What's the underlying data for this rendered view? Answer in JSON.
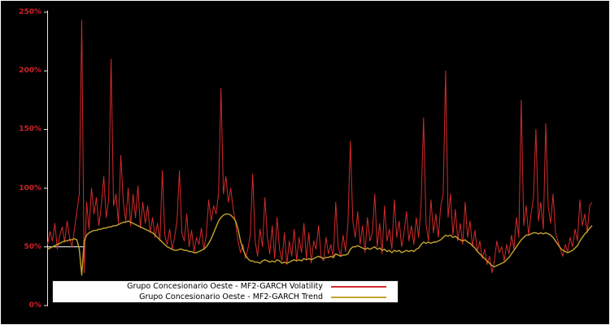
{
  "figure": {
    "background": "#000000",
    "frame_color": "#ffffff"
  },
  "chart_data": {
    "type": "line",
    "title": "",
    "xlabel": "",
    "ylabel": "",
    "unit": "%",
    "ylim": [
      0,
      250
    ],
    "ytick_labels": [
      "250%",
      "200%",
      "150%",
      "100%",
      "50%",
      "0%"
    ],
    "axis_label_color": "#d22128",
    "axis_line_color": "#e8e8e8",
    "grid": "off",
    "legend_position": "bottom-left",
    "legend_background": "#ffffff",
    "series": [
      {
        "name": "Grupo Concesionario Oeste - MF2-GARCH Volatility",
        "color": "#d42a2a",
        "values": [
          52,
          63,
          55,
          70,
          48,
          60,
          67,
          54,
          72,
          58,
          50,
          65,
          80,
          95,
          243,
          28,
          88,
          65,
          100,
          78,
          92,
          68,
          85,
          110,
          75,
          90,
          210,
          85,
          95,
          70,
          128,
          88,
          72,
          100,
          68,
          95,
          75,
          102,
          66,
          88,
          70,
          85,
          62,
          75,
          58,
          70,
          55,
          115,
          60,
          52,
          65,
          48,
          58,
          72,
          115,
          62,
          55,
          78,
          50,
          64,
          46,
          58,
          52,
          66,
          48,
          60,
          90,
          72,
          85,
          78,
          95,
          185,
          95,
          110,
          88,
          100,
          82,
          70,
          55,
          45,
          52,
          40,
          48,
          60,
          112,
          55,
          42,
          65,
          50,
          92,
          58,
          44,
          68,
          40,
          75,
          48,
          38,
          62,
          35,
          55,
          42,
          65,
          38,
          58,
          45,
          70,
          40,
          62,
          36,
          55,
          48,
          68,
          42,
          38,
          58,
          44,
          52,
          40,
          88,
          50,
          42,
          60,
          46,
          70,
          140,
          72,
          58,
          80,
          52,
          68,
          45,
          75,
          55,
          62,
          95,
          50,
          70,
          44,
          85,
          55,
          65,
          48,
          90,
          58,
          72,
          50,
          62,
          80,
          55,
          68,
          52,
          75,
          58,
          88,
          160,
          70,
          55,
          90,
          62,
          78,
          58,
          85,
          95,
          200,
          75,
          95,
          60,
          82,
          55,
          70,
          52,
          88,
          58,
          72,
          50,
          64,
          46,
          55,
          40,
          48,
          35,
          42,
          28,
          38,
          55,
          45,
          50,
          38,
          52,
          44,
          60,
          48,
          75,
          58,
          175,
          68,
          85,
          60,
          78,
          92,
          150,
          72,
          88,
          65,
          155,
          85,
          70,
          95,
          62,
          55,
          48,
          42,
          52,
          46,
          58,
          50,
          65,
          55,
          90,
          68,
          78,
          62,
          85,
          88
        ]
      },
      {
        "name": "Grupo Concesionario Oeste - MF2-GARCH Trend",
        "color": "#c4a52b",
        "values": [
          48,
          49,
          50,
          51,
          52,
          53,
          54,
          55,
          55,
          56,
          56,
          57,
          56,
          48,
          26,
          55,
          60,
          62,
          63,
          64,
          64,
          65,
          65,
          66,
          66,
          67,
          67,
          68,
          68,
          69,
          70,
          71,
          71,
          72,
          71,
          70,
          69,
          68,
          67,
          66,
          65,
          64,
          63,
          62,
          60,
          58,
          56,
          54,
          52,
          50,
          49,
          48,
          47,
          47,
          48,
          48,
          47,
          47,
          46,
          46,
          45,
          45,
          46,
          47,
          48,
          50,
          53,
          57,
          62,
          67,
          72,
          75,
          77,
          78,
          78,
          77,
          75,
          72,
          65,
          55,
          48,
          43,
          40,
          38,
          38,
          37,
          37,
          36,
          38,
          39,
          38,
          37,
          38,
          37,
          39,
          38,
          36,
          37,
          36,
          37,
          38,
          39,
          38,
          39,
          38,
          40,
          39,
          40,
          39,
          40,
          41,
          42,
          41,
          40,
          41,
          41,
          42,
          41,
          44,
          43,
          42,
          43,
          43,
          44,
          48,
          50,
          50,
          51,
          50,
          49,
          48,
          49,
          48,
          49,
          50,
          48,
          49,
          47,
          48,
          46,
          47,
          45,
          47,
          46,
          47,
          45,
          46,
          47,
          46,
          47,
          46,
          48,
          49,
          52,
          54,
          53,
          54,
          53,
          54,
          54,
          55,
          56,
          58,
          60,
          59,
          60,
          58,
          59,
          57,
          56,
          55,
          56,
          54,
          53,
          51,
          49,
          46,
          44,
          42,
          40,
          38,
          36,
          34,
          33,
          34,
          35,
          36,
          37,
          39,
          41,
          44,
          47,
          50,
          53,
          56,
          58,
          60,
          60,
          61,
          62,
          62,
          61,
          62,
          61,
          62,
          61,
          60,
          58,
          55,
          52,
          49,
          47,
          46,
          45,
          46,
          47,
          49,
          51,
          55,
          58,
          61,
          63,
          66,
          68
        ]
      }
    ]
  }
}
